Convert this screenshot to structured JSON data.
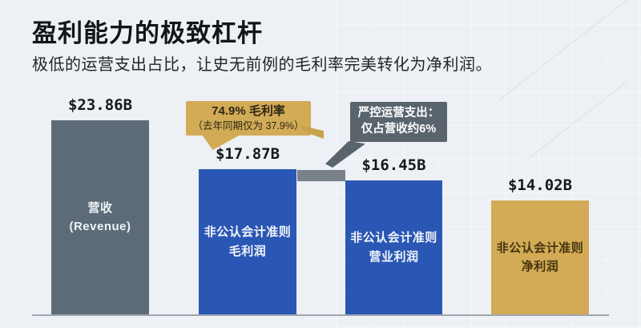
{
  "header": {
    "title": "盈利能力的极致杠杆",
    "subtitle": "极低的运营支出占比，让史无前例的毛利率完美转化为净利润。"
  },
  "chart_data": {
    "type": "bar",
    "unit": "$B (USD billions)",
    "ylim": [
      0,
      24
    ],
    "grid": false,
    "legend_position": "none",
    "bars": [
      {
        "name": "revenue",
        "value": 23.86,
        "value_label": "$23.86B",
        "label_line1": "营收",
        "label_line2": "(Revenue)",
        "color": "#5d6b79",
        "text_color": "#edf1f5"
      },
      {
        "name": "non-gaap-gross-profit",
        "value": 17.87,
        "value_label": "$17.87B",
        "label_line1": "非公认会计准则",
        "label_line2": "毛利润",
        "color": "#2a57b4",
        "text_color": "#f2f5fa"
      },
      {
        "name": "non-gaap-operating-profit",
        "value": 16.45,
        "value_label": "$16.45B",
        "label_line1": "非公认会计准则",
        "label_line2": "营业利润",
        "color": "#2a57b4",
        "text_color": "#f2f5fa"
      },
      {
        "name": "non-gaap-net-profit",
        "value": 14.02,
        "value_label": "$14.02B",
        "label_line1": "非公认会计准则",
        "label_line2": "净利润",
        "color": "#d3aa55",
        "text_color": "#42350f"
      }
    ],
    "connector": {
      "spans": "top of bar 2 to top of bar 3",
      "color": "#798189"
    },
    "annotations": [
      {
        "id": "gross-margin",
        "line1": "74.9% 毛利率",
        "line2": "（去年同期仅为 37.9%）",
        "bg": "#d2ab57",
        "text_color": "#2e2712"
      },
      {
        "id": "opex",
        "line1": "严控运营支出：",
        "line2": "仅占营收约6%",
        "bg": "#5a646d",
        "text_color": "#ffffff"
      }
    ]
  }
}
